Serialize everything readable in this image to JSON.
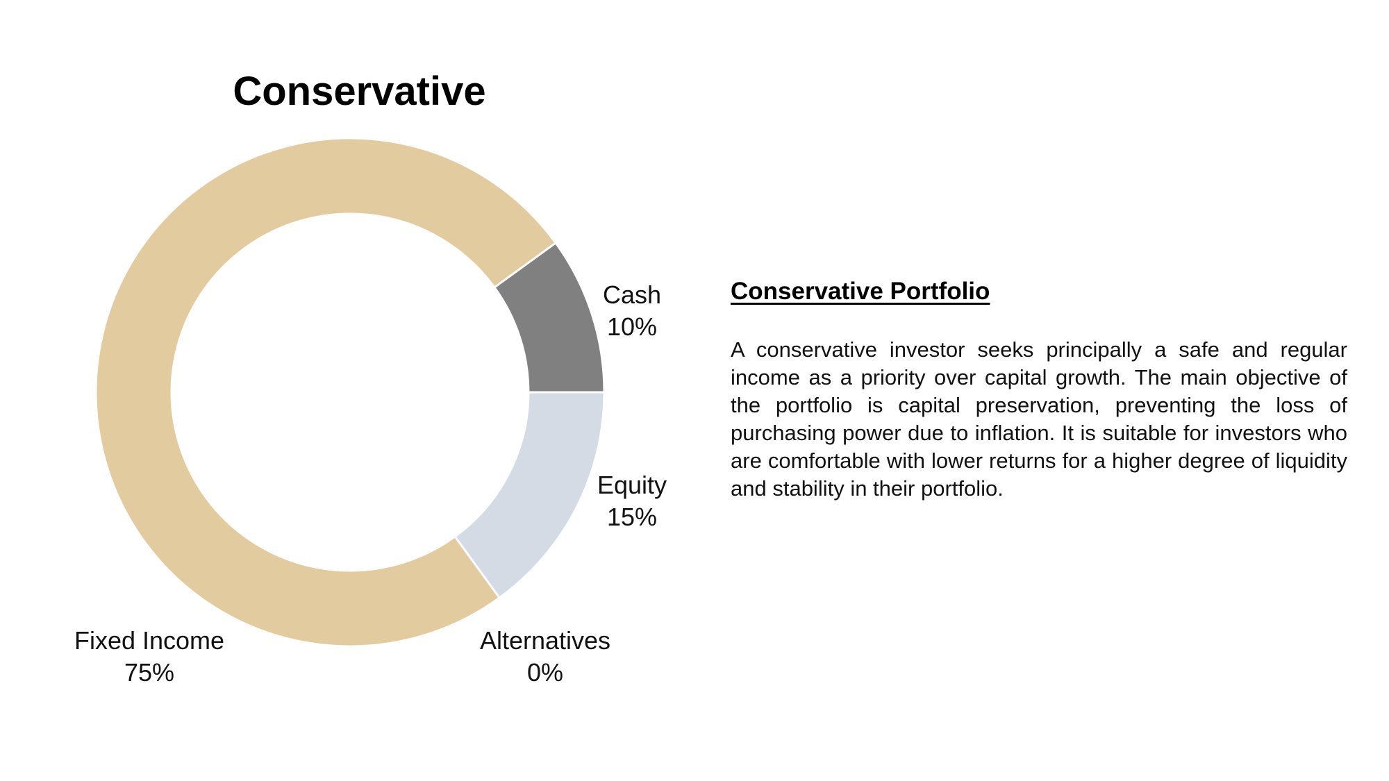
{
  "chart_data": {
    "type": "pie",
    "style": "donut",
    "title": "Conservative",
    "slices": [
      {
        "name": "Cash",
        "value": 10,
        "value_label": "10%",
        "color": "#808080"
      },
      {
        "name": "Equity",
        "value": 15,
        "value_label": "15%",
        "color": "#d5dbe5"
      },
      {
        "name": "Alternatives",
        "value": 0,
        "value_label": "0%",
        "color": "#c9c9c9"
      },
      {
        "name": "Fixed Income",
        "value": 75,
        "value_label": "75%",
        "color": "#e3cba0"
      }
    ],
    "unit": "%"
  },
  "description": {
    "heading": "Conservative Portfolio",
    "body": "A conservative investor seeks principally a safe and regular income as a priority over capital growth. The main objective of the portfolio is capital preservation, preventing the loss of purchasing power due to inflation. It is suitable for investors who are comfortable with lower returns for a higher degree of liquidity and stability in their portfolio."
  }
}
